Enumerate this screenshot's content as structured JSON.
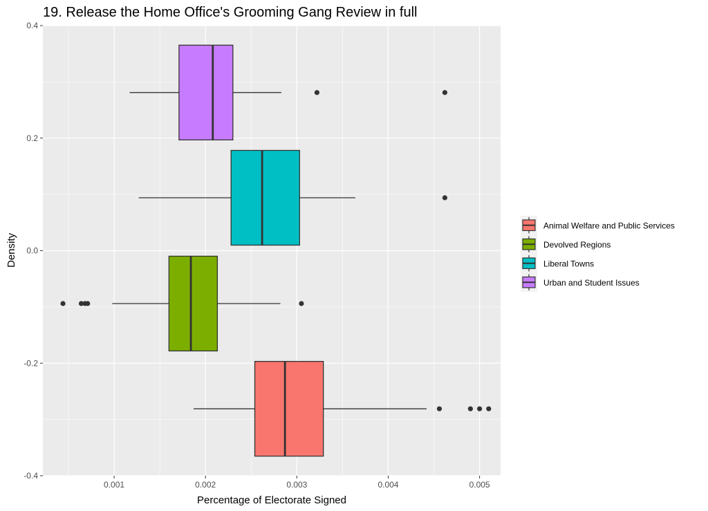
{
  "chart_data": {
    "type": "boxplot",
    "orientation": "horizontal",
    "title": "19. Release the Home Office's Grooming Gang Review in full",
    "xlabel": "Percentage of Electorate Signed",
    "ylabel": "Density",
    "xlim": [
      0.00022,
      0.00523
    ],
    "ylim": [
      -0.4,
      0.4
    ],
    "x_ticks": [
      0.001,
      0.002,
      0.003,
      0.004,
      0.005
    ],
    "x_tick_labels": [
      "0.001",
      "0.002",
      "0.003",
      "0.004",
      "0.005"
    ],
    "y_ticks": [
      -0.4,
      -0.2,
      0.0,
      0.2,
      0.4
    ],
    "y_tick_labels": [
      "-0.4",
      "-0.2",
      "0.0",
      "0.2",
      "0.4"
    ],
    "grid": true,
    "legend_position": "right",
    "series": [
      {
        "name": "Animal Welfare and Public Services",
        "color": "#F8766D",
        "y": -0.281,
        "whisker_low": 0.00187,
        "q1": 0.00254,
        "median": 0.00287,
        "q3": 0.00329,
        "whisker_high": 0.00442,
        "outliers": [
          0.00456,
          0.0049,
          0.005,
          0.0051
        ]
      },
      {
        "name": "Devolved Regions",
        "color": "#7CAE00",
        "y": -0.094,
        "whisker_low": 0.00098,
        "q1": 0.0016,
        "median": 0.00184,
        "q3": 0.00213,
        "whisker_high": 0.00282,
        "outliers": [
          0.00044,
          0.00064,
          0.00068,
          0.00071,
          0.00305
        ]
      },
      {
        "name": "Liberal Towns",
        "color": "#00BFC4",
        "y": 0.094,
        "whisker_low": 0.00127,
        "q1": 0.00228,
        "median": 0.00262,
        "q3": 0.00303,
        "whisker_high": 0.00364,
        "outliers": [
          0.00462
        ]
      },
      {
        "name": "Urban and Student Issues",
        "color": "#C77CFF",
        "y": 0.281,
        "whisker_low": 0.00117,
        "q1": 0.00171,
        "median": 0.00208,
        "q3": 0.0023,
        "whisker_high": 0.00283,
        "outliers": [
          0.00322,
          0.00462
        ]
      }
    ]
  }
}
